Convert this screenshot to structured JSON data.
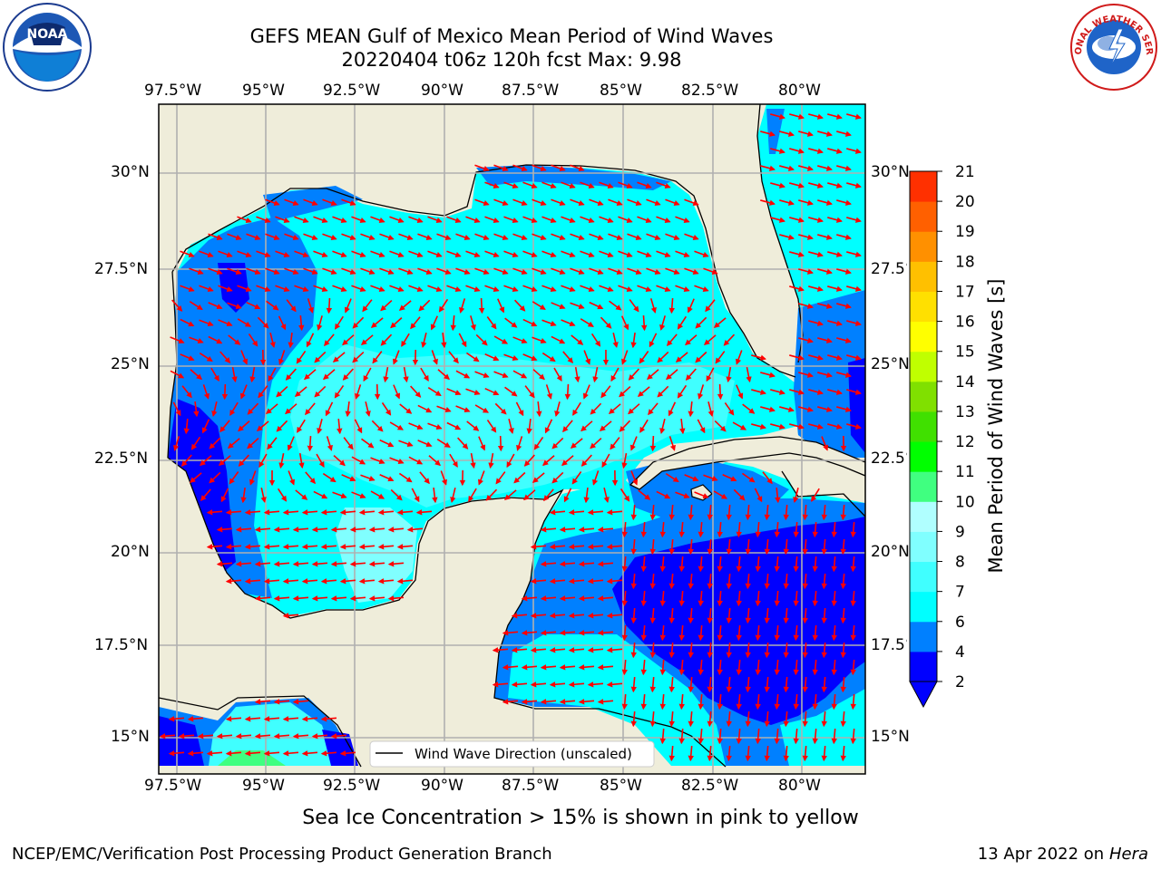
{
  "header": {
    "title_line1": "GEFS MEAN Gulf of Mexico Mean Period of Wind Waves",
    "title_line2": "20220404 t06z 120h fcst   Max: 9.98"
  },
  "map": {
    "lon_labels": [
      "97.5°W",
      "95°W",
      "92.5°W",
      "90°W",
      "87.5°W",
      "85°W",
      "82.5°W",
      "80°W"
    ],
    "lat_labels": [
      "30°N",
      "27.5°N",
      "25°N",
      "22.5°N",
      "20°N",
      "17.5°N",
      "15°N"
    ],
    "land_color": "#efedda",
    "legend_label": "Wind Wave Direction (unscaled)",
    "arrow_color": "#ff0000"
  },
  "colorbar": {
    "label": "Mean Period of Wind Waves [s]",
    "ticks": [
      "2",
      "4",
      "6",
      "7",
      "8",
      "9",
      "10",
      "11",
      "12",
      "13",
      "14",
      "15",
      "16",
      "17",
      "18",
      "19",
      "20",
      "21"
    ],
    "colors": [
      "#0000ff",
      "#0080ff",
      "#00ffff",
      "#40ffff",
      "#80ffff",
      "#b0ffff",
      "#40ff80",
      "#00ff00",
      "#40e000",
      "#80e000",
      "#c0ff00",
      "#ffff00",
      "#ffe000",
      "#ffc000",
      "#ff9000",
      "#ff6000",
      "#ff3000",
      "#ff0000"
    ]
  },
  "note": "Sea Ice Concentration > 15% is shown in pink to yellow",
  "footer": {
    "left": "NCEP/EMC/Verification Post Processing Product Generation Branch",
    "right_date": "13 Apr 2022 on ",
    "right_host": "Hera"
  },
  "logos": {
    "noaa_text": "NOAA",
    "nws_text": "NATIONAL WEATHER SERVICE"
  }
}
